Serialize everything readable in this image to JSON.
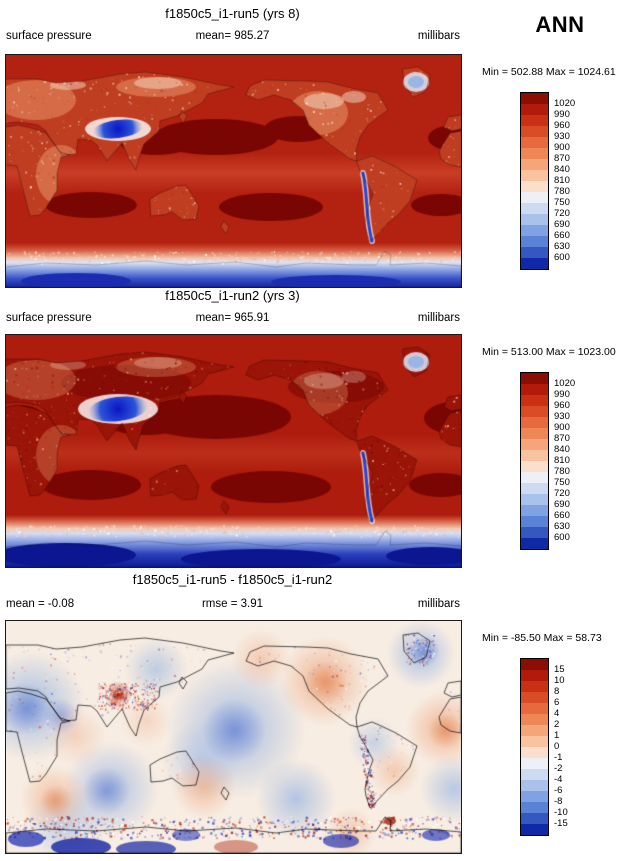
{
  "page": {
    "season_label": "ANN"
  },
  "palette": {
    "colors": [
      "#8b0e04",
      "#b21b0b",
      "#ca3014",
      "#da4c26",
      "#e66a3e",
      "#ee8756",
      "#f4a67a",
      "#f9c3a0",
      "#fbdecb",
      "#eef0f8",
      "#ccdaf2",
      "#a9c2ec",
      "#7fa3e2",
      "#5a82d6",
      "#3558c0",
      "#1029a6"
    ]
  },
  "panels": [
    {
      "title": "f1850c5_i1-run5 (yrs 8)",
      "var_label": "surface pressure",
      "mean_label": "mean= 985.27",
      "units_label": "millibars",
      "minmax_label": "Min = 502.88 Max = 1024.61",
      "colorbar": {
        "labels": [
          "1020",
          "990",
          "960",
          "930",
          "900",
          "870",
          "840",
          "810",
          "780",
          "750",
          "720",
          "690",
          "660",
          "630",
          "600"
        ]
      }
    },
    {
      "title": "f1850c5_i1-run2 (yrs 3)",
      "var_label": "surface pressure",
      "mean_label": "mean= 965.91",
      "units_label": "millibars",
      "minmax_label": "Min = 513.00 Max = 1023.00",
      "colorbar": {
        "labels": [
          "1020",
          "990",
          "960",
          "930",
          "900",
          "870",
          "840",
          "810",
          "780",
          "750",
          "720",
          "690",
          "660",
          "630",
          "600"
        ]
      }
    },
    {
      "title": "f1850c5_i1-run5 - f1850c5_i1-run2",
      "mean_label": "mean = -0.08",
      "rmse_label": "rmse = 3.91",
      "units_label": "millibars",
      "minmax_label": "Min = -85.50 Max = 58.73",
      "colorbar": {
        "labels": [
          "15",
          "10",
          "8",
          "6",
          "4",
          "2",
          "1",
          "0",
          "-1",
          "-2",
          "-4",
          "-6",
          "-8",
          "-10",
          "-15"
        ]
      }
    }
  ],
  "chart_data": [
    {
      "type": "heatmap",
      "subtype": "global_latlon_contour_map",
      "title": "f1850c5_i1-run5 (yrs 8)",
      "variable": "surface pressure",
      "units": "millibars",
      "season": "ANN",
      "stats": {
        "mean": 985.27,
        "min": 502.88,
        "max": 1024.61
      },
      "contour_levels": [
        600,
        630,
        660,
        690,
        720,
        750,
        780,
        810,
        840,
        870,
        900,
        930,
        960,
        990,
        1020
      ],
      "palette": "blue_to_dark_red",
      "projection": "cylindrical equidistant, lon 0-360E, lat 90S-90N",
      "legend_position": "right",
      "notable_features": [
        "deep blue low over Tibetan Plateau",
        "blue over Greenland and Andes",
        "dark red subtropical ocean highs",
        "blue Antarctica band at bottom"
      ]
    },
    {
      "type": "heatmap",
      "subtype": "global_latlon_contour_map",
      "title": "f1850c5_i1-run2 (yrs 3)",
      "variable": "surface pressure",
      "units": "millibars",
      "season": "ANN",
      "stats": {
        "mean": 965.91,
        "min": 513.0,
        "max": 1023.0
      },
      "contour_levels": [
        600,
        630,
        660,
        690,
        720,
        750,
        780,
        810,
        840,
        870,
        900,
        930,
        960,
        990,
        1020
      ],
      "palette": "blue_to_dark_red",
      "projection": "cylindrical equidistant, lon 0-360E, lat 90S-90N",
      "legend_position": "right",
      "notable_features": [
        "larger/darker blue over Tibetan Plateau",
        "dark maroon land areas",
        "thicker dark blue Antarctic band"
      ]
    },
    {
      "type": "heatmap",
      "subtype": "difference_map",
      "title": "f1850c5_i1-run5 - f1850c5_i1-run2",
      "variable": "surface pressure difference",
      "units": "millibars",
      "season": "ANN",
      "stats": {
        "mean": -0.08,
        "rmse": 3.91,
        "min": -85.5,
        "max": 58.73
      },
      "contour_levels": [
        -15,
        -10,
        -8,
        -6,
        -4,
        -2,
        -1,
        0,
        1,
        2,
        4,
        6,
        8,
        10,
        15
      ],
      "palette": "blue_to_dark_red",
      "projection": "cylindrical equidistant, lon 0-360E, lat 90S-90N",
      "legend_position": "right",
      "notable_features": [
        "mostly near-zero pale field",
        "blue/red speckle over mountains and Antarctic coast",
        "soft blue and orange ocean anomalies"
      ]
    }
  ]
}
